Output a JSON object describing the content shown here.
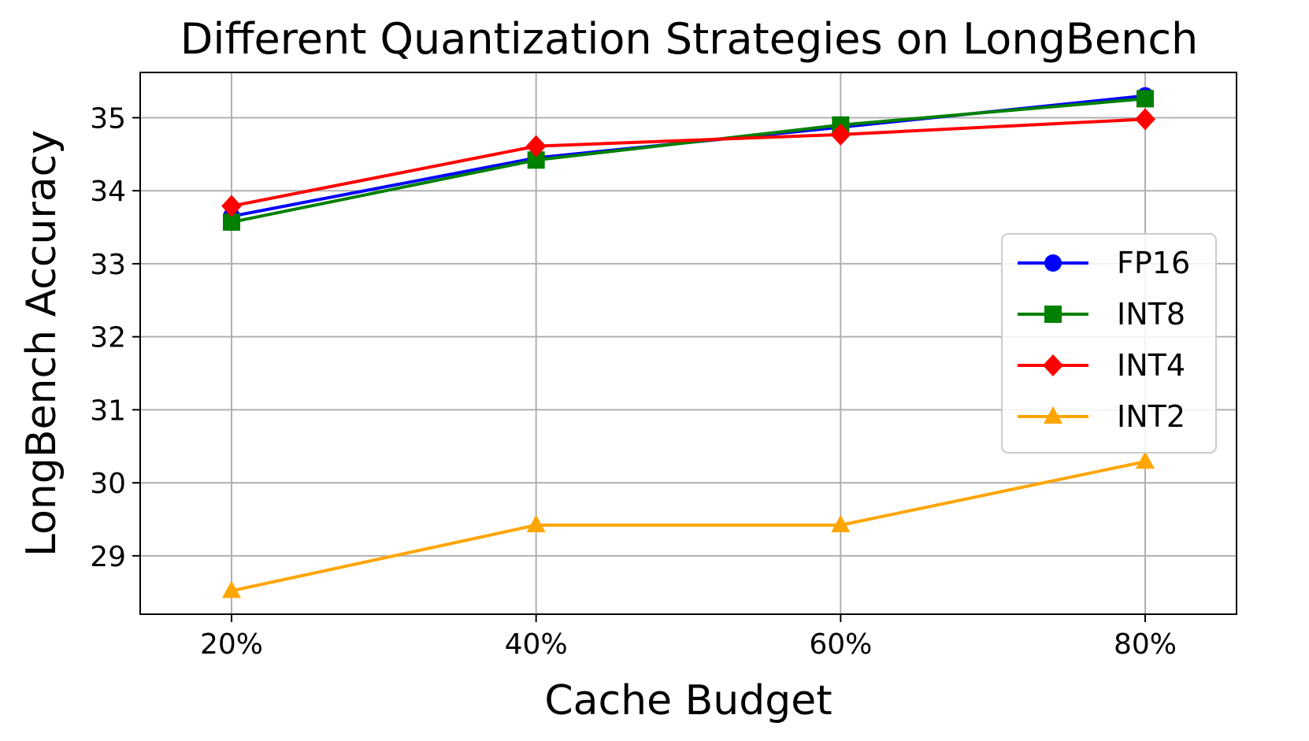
{
  "chart_data": {
    "type": "line",
    "title": "Different Quantization Strategies on LongBench",
    "xlabel": "Cache Budget",
    "ylabel": "LongBench Accuracy",
    "categories": [
      "20%",
      "40%",
      "60%",
      "80%"
    ],
    "yticks": [
      29,
      30,
      31,
      32,
      33,
      34,
      35
    ],
    "ylim": [
      28.2,
      35.62
    ],
    "grid": true,
    "legend_position": "center-right",
    "series": [
      {
        "name": "FP16",
        "values": [
          33.65,
          34.45,
          34.87,
          35.3
        ],
        "color": "#0000ff",
        "marker": "circle"
      },
      {
        "name": "INT8",
        "values": [
          33.57,
          34.42,
          34.9,
          35.26
        ],
        "color": "#008000",
        "marker": "square"
      },
      {
        "name": "INT4",
        "values": [
          33.79,
          34.61,
          34.77,
          34.98
        ],
        "color": "#ff0000",
        "marker": "diamond"
      },
      {
        "name": "INT2",
        "values": [
          28.52,
          29.42,
          29.42,
          30.29
        ],
        "color": "#ffa500",
        "marker": "triangle"
      }
    ]
  }
}
